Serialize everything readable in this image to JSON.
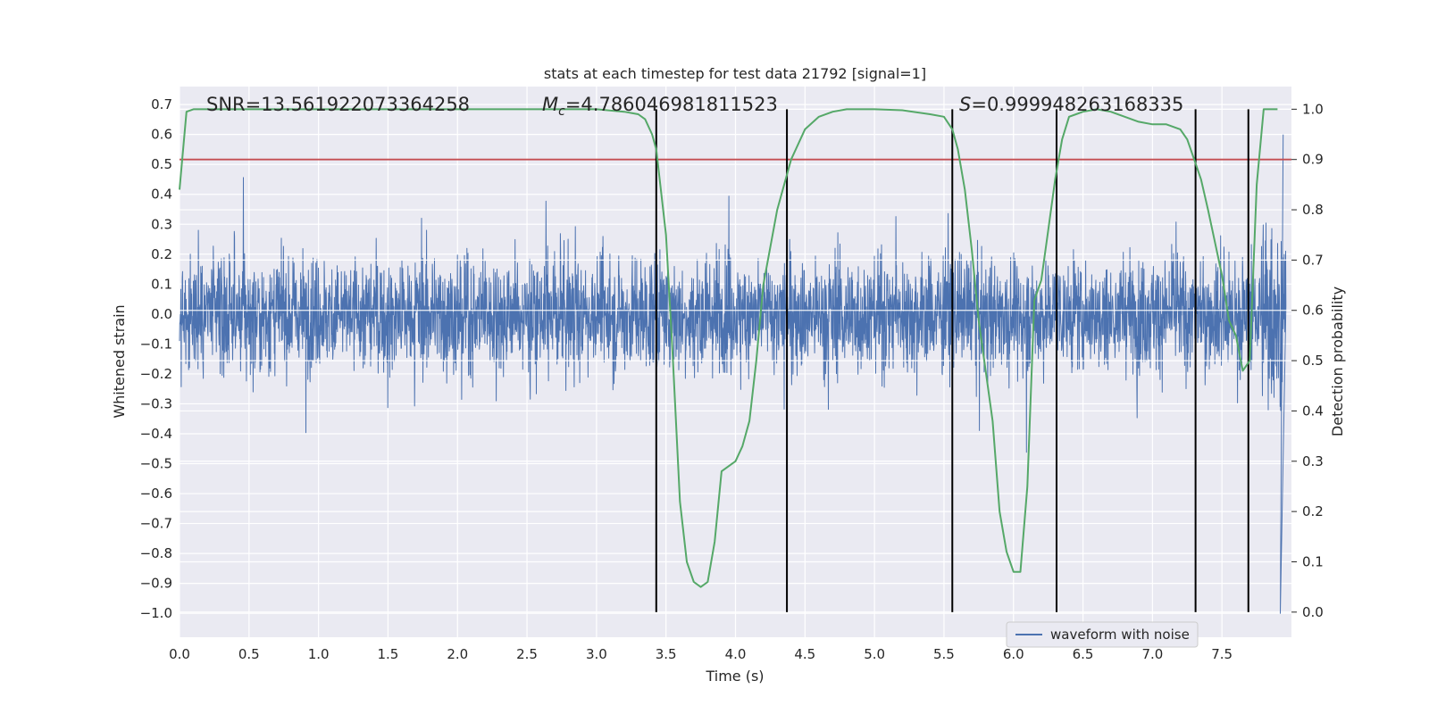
{
  "chart_data": {
    "type": "line",
    "title": "stats at each timestep for test data 21792 [signal=1]",
    "xlabel": "Time (s)",
    "ylabel_left": "Whitened strain",
    "ylabel_right": "Detection probability",
    "xlim": [
      0.0,
      8.0
    ],
    "ylim_left": [
      -1.08,
      0.76
    ],
    "ylim_right": [
      -0.05,
      1.045
    ],
    "x_ticks": [
      "0.0",
      "0.5",
      "1.0",
      "1.5",
      "2.0",
      "2.5",
      "3.0",
      "3.5",
      "4.0",
      "4.5",
      "5.0",
      "5.5",
      "6.0",
      "6.5",
      "7.0",
      "7.5"
    ],
    "y_ticks_left": [
      "0.7",
      "0.6",
      "0.5",
      "0.4",
      "0.3",
      "0.2",
      "0.1",
      "0.0",
      "−0.1",
      "−0.2",
      "−0.3",
      "−0.4",
      "−0.5",
      "−0.6",
      "−0.7",
      "−0.8",
      "−0.9",
      "−1.0"
    ],
    "y_ticks_right": [
      "1.0",
      "0.9",
      "0.8",
      "0.7",
      "0.6",
      "0.5",
      "0.4",
      "0.3",
      "0.2",
      "0.1",
      "0.0"
    ],
    "grid": true,
    "annotations": {
      "snr": "SNR=13.561922073364258",
      "mc_symbol": "M",
      "mc_sub": "c",
      "mc_value": "=4.786046981811523",
      "s_symbol": "S",
      "s_value": "=0.999948263168335"
    },
    "threshold_right": 0.9,
    "vertical_lines_x": [
      3.43,
      4.37,
      5.56,
      6.31,
      7.31,
      7.69
    ],
    "series": [
      {
        "name": "waveform with noise",
        "axis": "left",
        "color": "#4c72b0",
        "description": "noise-dominated whitened strain, amplitude mostly within ±0.35, peaks to ±0.7, dips to -1.0 near 7.9 s"
      },
      {
        "name": "detection probability",
        "axis": "right",
        "color": "#55a868",
        "x": [
          0.0,
          0.05,
          0.1,
          0.5,
          1.0,
          2.0,
          3.0,
          3.2,
          3.3,
          3.35,
          3.4,
          3.43,
          3.5,
          3.55,
          3.6,
          3.65,
          3.7,
          3.75,
          3.8,
          3.85,
          3.9,
          3.95,
          4.0,
          4.05,
          4.1,
          4.15,
          4.2,
          4.3,
          4.4,
          4.5,
          4.6,
          4.7,
          4.8,
          4.9,
          5.0,
          5.2,
          5.4,
          5.5,
          5.56,
          5.6,
          5.65,
          5.7,
          5.75,
          5.8,
          5.85,
          5.9,
          5.95,
          6.0,
          6.05,
          6.1,
          6.15,
          6.2,
          6.25,
          6.3,
          6.35,
          6.4,
          6.45,
          6.5,
          6.6,
          6.7,
          6.8,
          6.9,
          7.0,
          7.1,
          7.2,
          7.25,
          7.3,
          7.35,
          7.4,
          7.5,
          7.55,
          7.6,
          7.65,
          7.7,
          7.75,
          7.8,
          7.85,
          7.9
        ],
        "values": [
          0.84,
          0.995,
          1.0,
          1.0,
          1.0,
          1.0,
          1.0,
          0.995,
          0.99,
          0.98,
          0.95,
          0.92,
          0.75,
          0.5,
          0.22,
          0.1,
          0.06,
          0.05,
          0.06,
          0.14,
          0.28,
          0.29,
          0.3,
          0.33,
          0.38,
          0.5,
          0.65,
          0.8,
          0.9,
          0.96,
          0.985,
          0.995,
          1.0,
          1.0,
          1.0,
          0.998,
          0.99,
          0.985,
          0.96,
          0.92,
          0.84,
          0.72,
          0.58,
          0.48,
          0.38,
          0.2,
          0.12,
          0.08,
          0.08,
          0.25,
          0.62,
          0.66,
          0.76,
          0.86,
          0.94,
          0.985,
          0.99,
          0.995,
          1.0,
          0.995,
          0.985,
          0.975,
          0.97,
          0.97,
          0.96,
          0.94,
          0.9,
          0.86,
          0.8,
          0.67,
          0.58,
          0.55,
          0.48,
          0.5,
          0.85,
          1.0,
          1.0,
          1.0
        ]
      }
    ],
    "legend": {
      "label": "waveform with noise",
      "location": "lower-right"
    }
  }
}
